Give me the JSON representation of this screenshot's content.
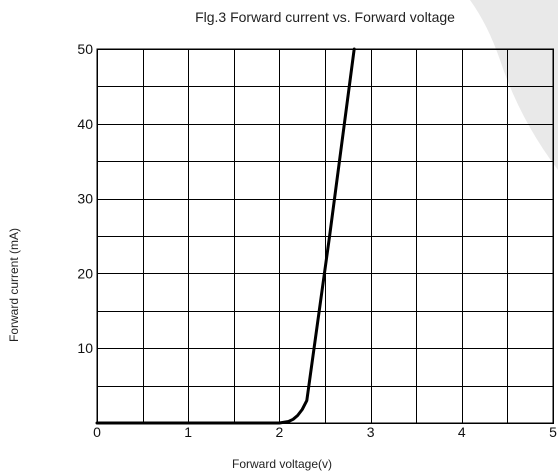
{
  "chart_data": {
    "type": "line",
    "title": "Flg.3 Forward current vs. Forward voltage",
    "xlabel": "Forward voltage(v)",
    "ylabel": "Forward current (mA)",
    "xlim": [
      0,
      5
    ],
    "ylim": [
      0,
      50
    ],
    "x_ticks": [
      0,
      1,
      2,
      3,
      4,
      5
    ],
    "y_ticks": [
      10,
      20,
      30,
      40,
      50
    ],
    "x_grid_step": 0.5,
    "y_grid_step": 5,
    "grid": true,
    "series": [
      {
        "x": [
          0,
          2.0,
          2.1,
          2.15,
          2.2,
          2.25,
          2.3,
          2.55,
          2.82
        ],
        "y": [
          0,
          0,
          0.2,
          0.5,
          1.0,
          1.8,
          3.0,
          25,
          50
        ]
      }
    ]
  }
}
